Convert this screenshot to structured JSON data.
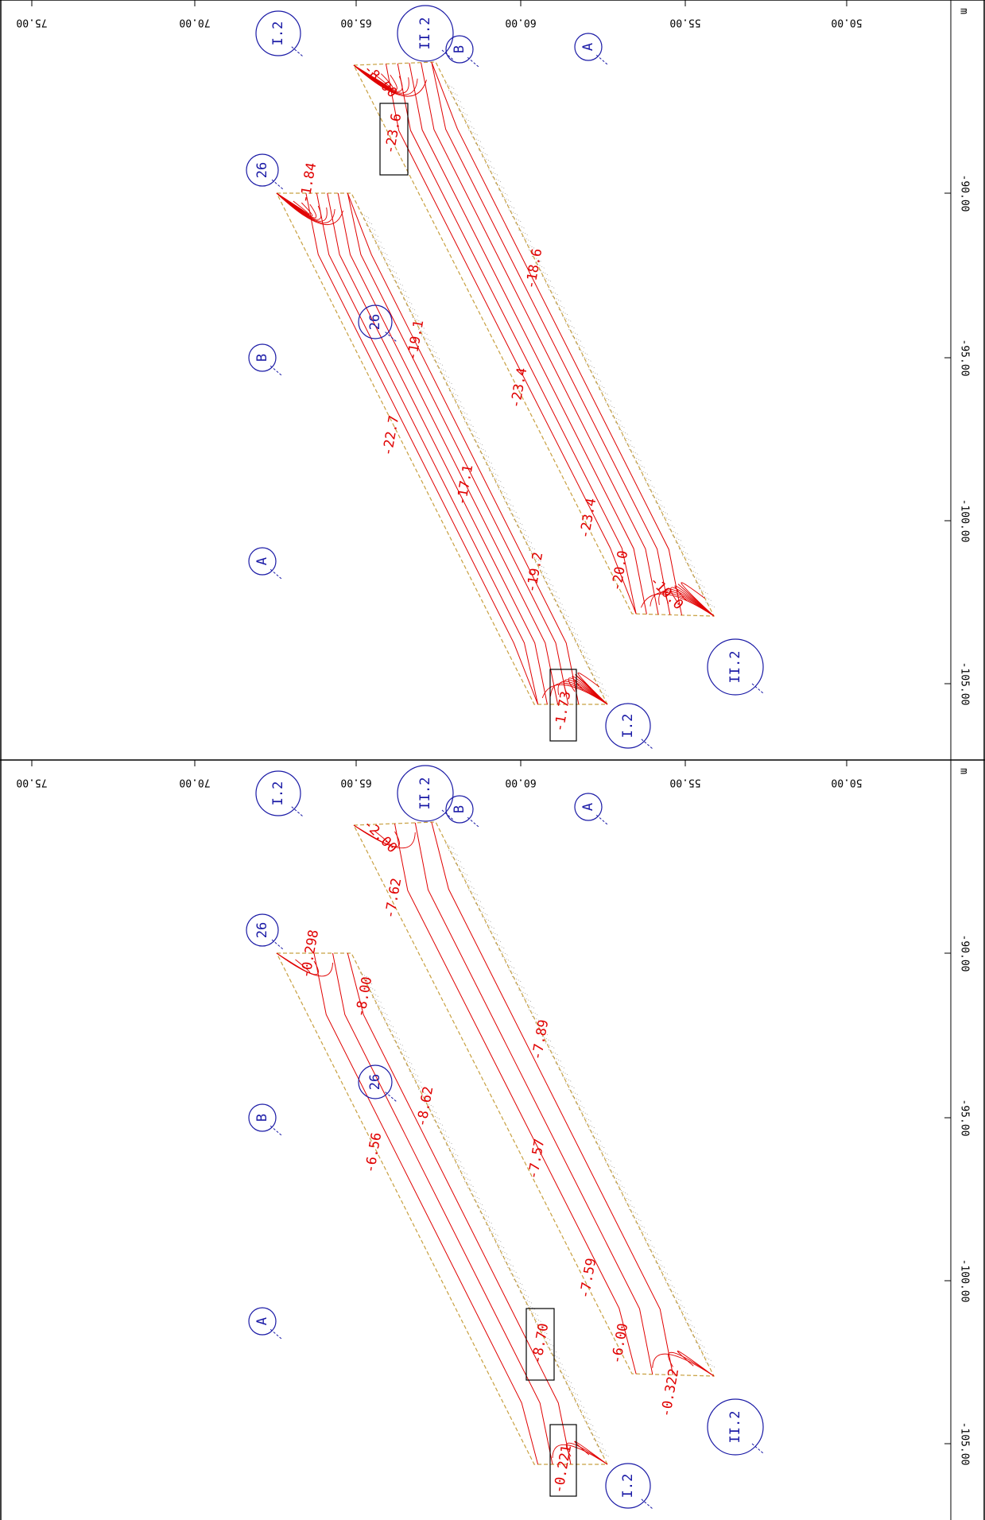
{
  "unit_label": "m",
  "x_ticks": [
    "75.00",
    "70.00",
    "65.00",
    "60.00",
    "55.00",
    "50.00"
  ],
  "y_ticks": [
    "-90.00",
    "-95.00",
    "-100.00",
    "-105.00"
  ],
  "panels": [
    {
      "grid_labels": [
        "I.2",
        "II.2",
        "B",
        "A",
        "26",
        "26",
        "B",
        "A",
        "II.2",
        "I.2"
      ],
      "value_labels": [
        "-8.00",
        "-23.6",
        "-1.84",
        "-18.6",
        "-19.1",
        "-23.4",
        "-22.7",
        "-17.1",
        "-23.4",
        "-19.2",
        "-20.0",
        "-10.0",
        "-1.73"
      ],
      "highlighted_values": [
        "-23.6",
        "-1.73"
      ]
    },
    {
      "grid_labels": [
        "I.2",
        "II.2",
        "B",
        "A",
        "26",
        "26",
        "B",
        "A",
        "II.2",
        "I.2"
      ],
      "value_labels": [
        "-2.00",
        "-7.62",
        "-0.298",
        "-8.00",
        "-7.89",
        "-8.62",
        "-6.56",
        "-7.57",
        "-7.59",
        "-6.00",
        "-0.322",
        "-8.70",
        "-0.221"
      ],
      "highlighted_values": [
        "-8.70",
        "-0.221"
      ]
    }
  ],
  "colors": {
    "contour": "#e00000",
    "grid": "#1a1aa6",
    "edge": "#c8a040",
    "frame": "#000000"
  }
}
